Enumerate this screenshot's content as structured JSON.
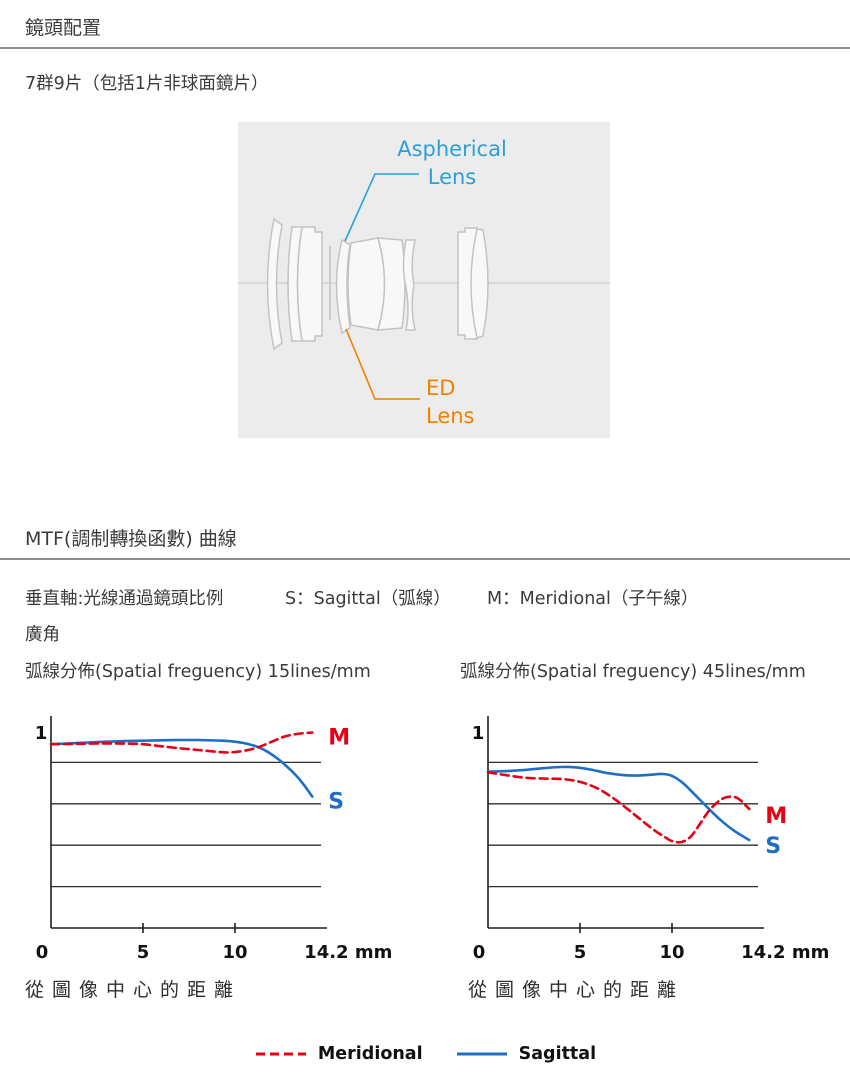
{
  "lens_section": {
    "title": "鏡頭配置",
    "description": "7群9片（包括1片非球面鏡片）",
    "diagram": {
      "aspherical_label": "Aspherical Lens",
      "ed_label": "ED Lens",
      "aspherical_color": "#2aa0da",
      "ed_color": "#ef8200",
      "highlight_fill": "#ccdba3"
    }
  },
  "mtf_section": {
    "title": "MTF(調制轉換函數) 曲線",
    "axis_note": "垂直軸:光線通過鏡頭比例",
    "sagittal_note": "S：Sagittal（弧線）",
    "meridional_note": "M：Meridional（子午線）",
    "zoom_label": "廣角",
    "legend": [
      {
        "label": "Meridional",
        "style": "dashed",
        "color": "#e60014"
      },
      {
        "label": "Sagittal",
        "style": "solid",
        "color": "#1e6fc4"
      }
    ]
  },
  "chart_data": [
    {
      "type": "line",
      "title": "弧線分佈(Spatial freguency) 15lines/mm",
      "x_caption": "從圖像中心的距離",
      "xlim": [
        0,
        15
      ],
      "ylim": [
        0,
        1
      ],
      "y_top_label": "1",
      "gridlines": [
        0.2,
        0.4,
        0.6,
        0.8
      ],
      "tick_marks": [
        5,
        10
      ],
      "x_ticks": [
        {
          "pos": 0,
          "label": "0"
        },
        {
          "pos": 5,
          "label": "5"
        },
        {
          "pos": 10,
          "label": "10"
        },
        {
          "pos": 14.2,
          "label": "14.2 mm"
        }
      ],
      "series": [
        {
          "name": "Sagittal",
          "label": "S",
          "color": "#1e6fc4",
          "style": "solid",
          "label_value": 0.615,
          "points": [
            [
              0,
              0.888
            ],
            [
              1,
              0.892
            ],
            [
              2,
              0.896
            ],
            [
              3,
              0.9
            ],
            [
              4,
              0.903
            ],
            [
              5,
              0.905
            ],
            [
              6,
              0.907
            ],
            [
              7,
              0.908
            ],
            [
              8,
              0.908
            ],
            [
              9,
              0.906
            ],
            [
              9.8,
              0.902
            ],
            [
              10.5,
              0.893
            ],
            [
              11.2,
              0.876
            ],
            [
              11.8,
              0.85
            ],
            [
              12.4,
              0.812
            ],
            [
              13.0,
              0.765
            ],
            [
              13.6,
              0.708
            ],
            [
              14.2,
              0.635
            ]
          ]
        },
        {
          "name": "Meridional",
          "label": "M",
          "color": "#e60014",
          "style": "dashed",
          "label_value": 0.925,
          "points": [
            [
              0,
              0.888
            ],
            [
              1,
              0.889
            ],
            [
              2,
              0.891
            ],
            [
              3,
              0.892
            ],
            [
              4,
              0.891
            ],
            [
              5,
              0.888
            ],
            [
              6,
              0.878
            ],
            [
              7,
              0.868
            ],
            [
              8,
              0.86
            ],
            [
              9,
              0.851
            ],
            [
              9.6,
              0.848
            ],
            [
              10.2,
              0.852
            ],
            [
              10.8,
              0.862
            ],
            [
              11.4,
              0.878
            ],
            [
              12.0,
              0.9
            ],
            [
              12.6,
              0.922
            ],
            [
              13.2,
              0.935
            ],
            [
              13.7,
              0.941
            ],
            [
              14.2,
              0.944
            ]
          ]
        }
      ]
    },
    {
      "type": "line",
      "title": "弧線分佈(Spatial freguency) 45lines/mm",
      "x_caption": "從圖像中心的距離",
      "xlim": [
        0,
        15
      ],
      "ylim": [
        0,
        1
      ],
      "y_top_label": "1",
      "gridlines": [
        0.2,
        0.4,
        0.6,
        0.8
      ],
      "tick_marks": [
        5,
        10
      ],
      "x_ticks": [
        {
          "pos": 0,
          "label": "0"
        },
        {
          "pos": 5,
          "label": "5"
        },
        {
          "pos": 10,
          "label": "10"
        },
        {
          "pos": 14.2,
          "label": "14.2 mm"
        }
      ],
      "series": [
        {
          "name": "Sagittal",
          "label": "S",
          "color": "#1e6fc4",
          "style": "solid",
          "label_value": 0.4,
          "points": [
            [
              0,
              0.755
            ],
            [
              1,
              0.758
            ],
            [
              2,
              0.764
            ],
            [
              3,
              0.772
            ],
            [
              4,
              0.778
            ],
            [
              4.8,
              0.776
            ],
            [
              5.6,
              0.765
            ],
            [
              6.4,
              0.75
            ],
            [
              7.2,
              0.74
            ],
            [
              8,
              0.736
            ],
            [
              8.8,
              0.74
            ],
            [
              9.5,
              0.744
            ],
            [
              10,
              0.735
            ],
            [
              10.6,
              0.7
            ],
            [
              11.2,
              0.648
            ],
            [
              11.9,
              0.585
            ],
            [
              12.6,
              0.525
            ],
            [
              13.4,
              0.468
            ],
            [
              14.2,
              0.425
            ]
          ]
        },
        {
          "name": "Meridional",
          "label": "M",
          "color": "#e60014",
          "style": "dashed",
          "label_value": 0.545,
          "points": [
            [
              0,
              0.752
            ],
            [
              1,
              0.738
            ],
            [
              2,
              0.726
            ],
            [
              3,
              0.722
            ],
            [
              4,
              0.72
            ],
            [
              5,
              0.706
            ],
            [
              6,
              0.672
            ],
            [
              7,
              0.615
            ],
            [
              8,
              0.545
            ],
            [
              9,
              0.475
            ],
            [
              9.6,
              0.44
            ],
            [
              10,
              0.42
            ],
            [
              10.5,
              0.415
            ],
            [
              11,
              0.44
            ],
            [
              11.5,
              0.5
            ],
            [
              12,
              0.565
            ],
            [
              12.6,
              0.617
            ],
            [
              13.1,
              0.634
            ],
            [
              13.6,
              0.625
            ],
            [
              14.2,
              0.575
            ]
          ]
        }
      ]
    }
  ]
}
